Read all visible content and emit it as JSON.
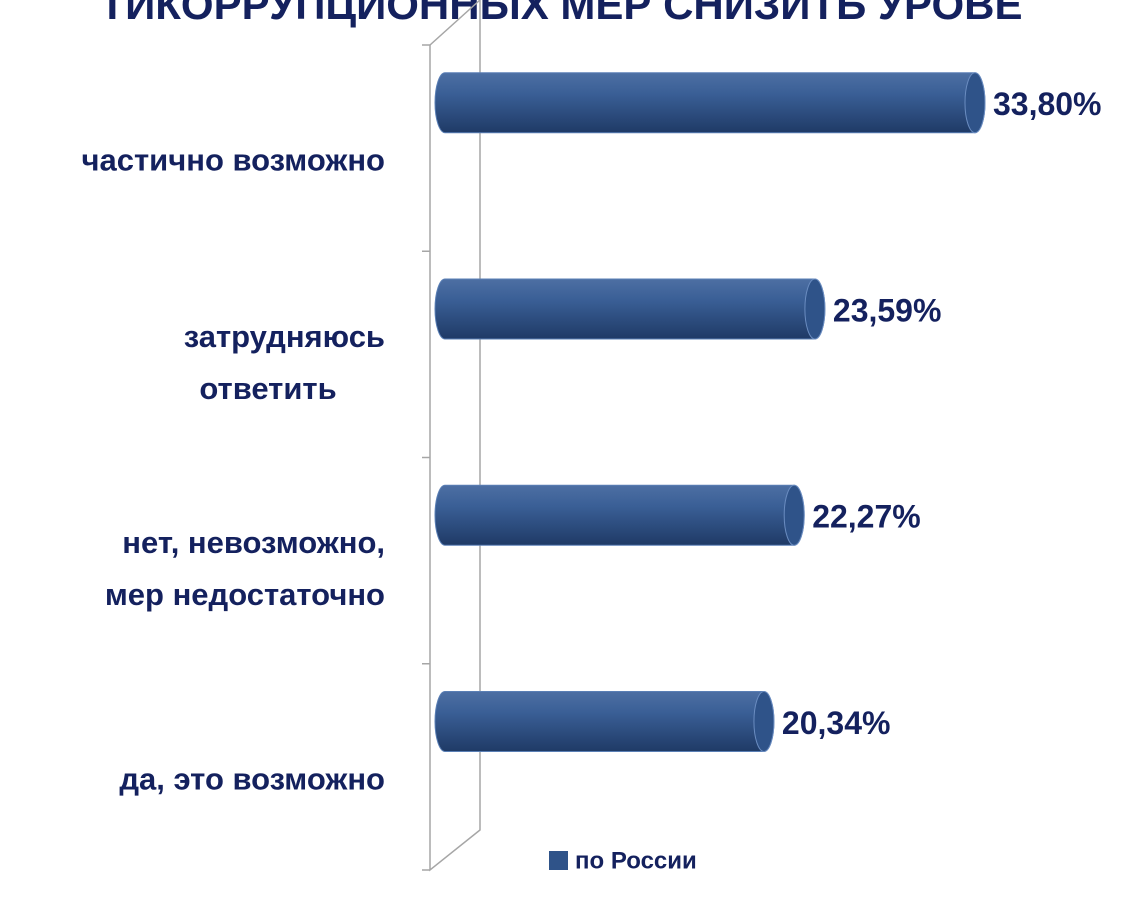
{
  "chart_data": {
    "type": "bar",
    "title": "ТИКОРРУПЦИОННЫХ МЕР СНИЗИТЬ УРОВЕ",
    "categories": [
      [
        "частично возможно"
      ],
      [
        "затрудняюсь",
        "ответить"
      ],
      [
        "нет, невозможно,",
        "мер недостаточно"
      ],
      [
        "да, это возможно"
      ]
    ],
    "series": [
      {
        "name": "по России",
        "color": "#2f5389",
        "values": [
          33.8,
          23.59,
          22.27,
          20.34
        ],
        "value_labels": [
          "33,80%",
          "23,59%",
          "22,27%",
          "20,34%"
        ]
      }
    ],
    "legend": "bottom"
  }
}
